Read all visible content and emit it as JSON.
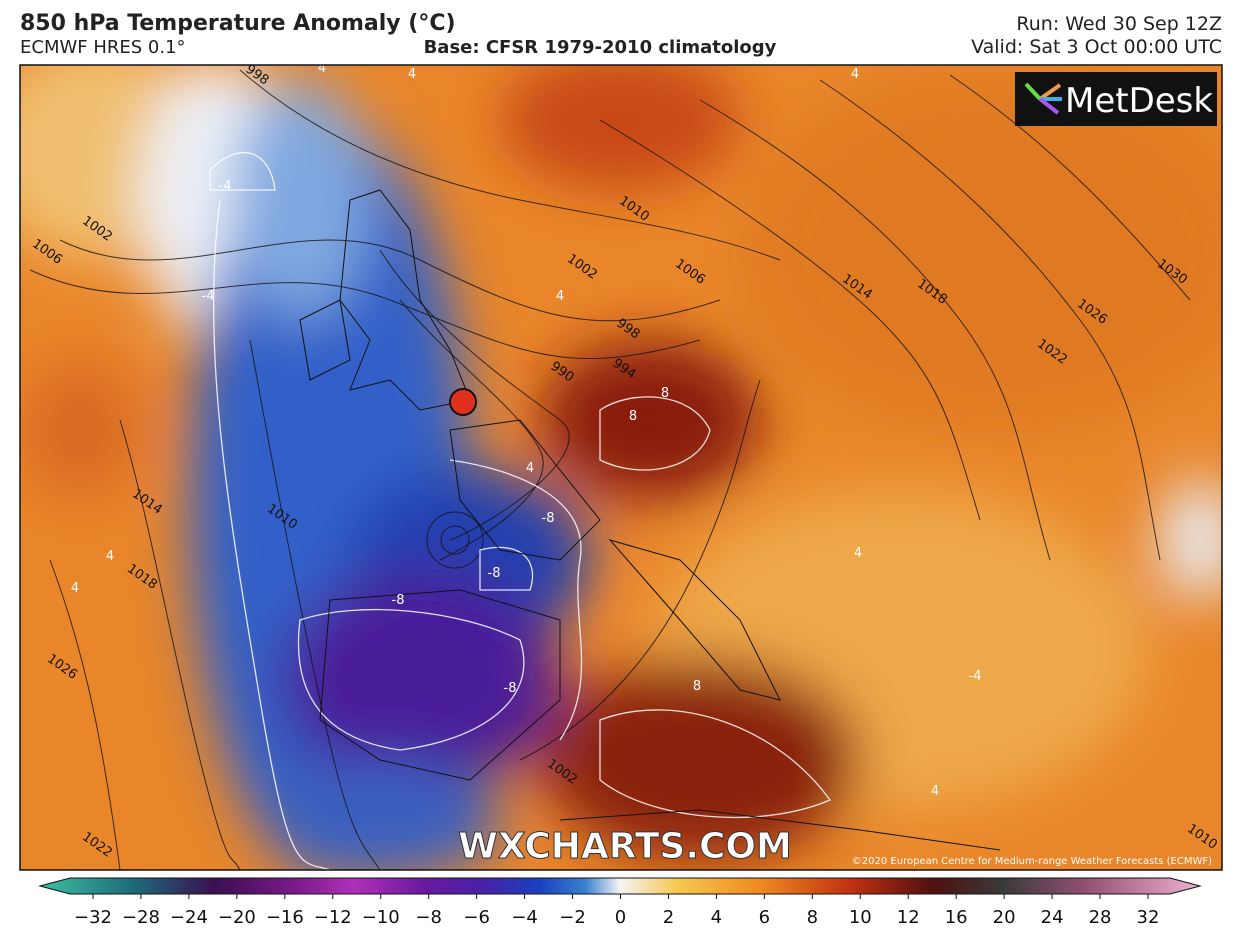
{
  "header": {
    "title": "850 hPa Temperature Anomaly (°C)",
    "model": "ECMWF HRES 0.1°",
    "base": "Base: CFSR 1979-2010 climatology",
    "run": "Run: Wed 30 Sep 12Z",
    "valid": "Valid: Sat 3 Oct 00:00 UTC"
  },
  "map": {
    "logo": "MetDesk",
    "watermark": "WXCHARTS.COM",
    "copyright": "©2020 European Centre for Medium-range Weather Forecasts (ECMWF)",
    "isobar_labels": [
      998,
      1002,
      1006,
      1010,
      1002,
      1006,
      998,
      994,
      990,
      1014,
      1018,
      1022,
      1026,
      1030,
      1010,
      1014,
      1018,
      1026,
      1022,
      1002,
      1010
    ],
    "anomaly_labels": [
      4,
      4,
      4,
      -4,
      -4,
      4,
      8,
      8,
      4,
      -8,
      -8,
      -8,
      -8,
      8,
      4,
      -4,
      4,
      4,
      4
    ]
  },
  "colorbar": {
    "ticks": [
      {
        "value": -32,
        "label": "−32"
      },
      {
        "value": -28,
        "label": "−28"
      },
      {
        "value": -24,
        "label": "−24"
      },
      {
        "value": -20,
        "label": "−20"
      },
      {
        "value": -16,
        "label": "−16"
      },
      {
        "value": -12,
        "label": "−12"
      },
      {
        "value": -10,
        "label": "−10"
      },
      {
        "value": -8,
        "label": "−8"
      },
      {
        "value": -6,
        "label": "−6"
      },
      {
        "value": -4,
        "label": "−4"
      },
      {
        "value": -2,
        "label": "−2"
      },
      0,
      2,
      4,
      6,
      8,
      10,
      12,
      16,
      20,
      24,
      28,
      32
    ]
  }
}
